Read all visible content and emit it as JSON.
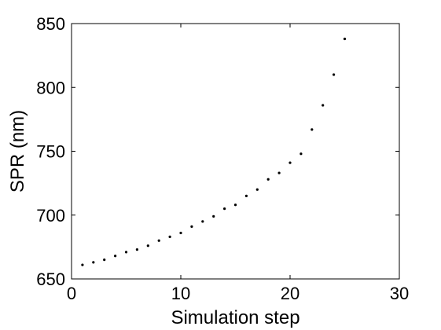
{
  "chart_data": {
    "type": "scatter",
    "title": "",
    "xlabel": "Simulation step",
    "ylabel": "SPR (nm)",
    "xlim": [
      0,
      30
    ],
    "ylim": [
      650,
      850
    ],
    "xticks": [
      0,
      10,
      20,
      30
    ],
    "yticks": [
      650,
      700,
      750,
      800,
      850
    ],
    "grid": false,
    "marker_color": "#000000",
    "x": [
      1,
      2,
      3,
      4,
      5,
      6,
      7,
      8,
      9,
      10,
      11,
      12,
      13,
      14,
      15,
      16,
      17,
      18,
      19,
      20,
      21,
      22,
      23,
      24,
      25
    ],
    "y": [
      661,
      663,
      665,
      668,
      671,
      673,
      676,
      680,
      683,
      686,
      691,
      695,
      699,
      705,
      708,
      715,
      720,
      728,
      733,
      741,
      748,
      767,
      786,
      810,
      838
    ]
  }
}
